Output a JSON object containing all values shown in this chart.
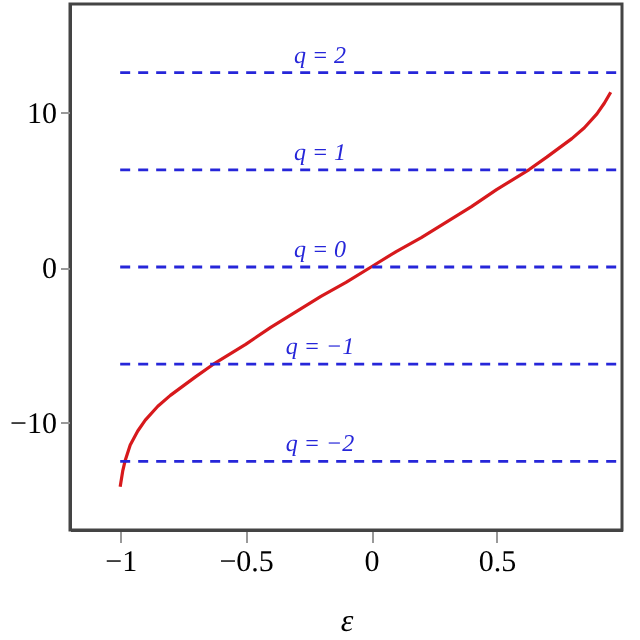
{
  "chart_data": {
    "type": "line",
    "xlabel": "ε",
    "series": [
      {
        "color": "#d7191c",
        "x": [
          -1,
          -0.99,
          -0.98,
          -0.96,
          -0.93,
          -0.9,
          -0.85,
          -0.8,
          -0.7,
          -0.63,
          -0.5,
          -0.4,
          -0.3,
          -0.2,
          -0.1,
          0,
          0.1,
          0.2,
          0.3,
          0.4,
          0.5,
          0.63,
          0.7,
          0.8,
          0.85,
          0.9,
          0.93,
          0.955
        ],
        "values": [
          -14.2,
          -13.2,
          -12.5,
          -11.5,
          -10.6,
          -9.9,
          -9.0,
          -8.3,
          -7.1,
          -6.3,
          -5.0,
          -3.9,
          -2.9,
          -1.9,
          -1.0,
          0,
          1.0,
          1.9,
          2.9,
          3.9,
          5.0,
          6.3,
          7.1,
          8.3,
          9.0,
          9.9,
          10.6,
          11.3
        ]
      }
    ],
    "xlim": [
      -1.2,
      1.0
    ],
    "ylim": [
      -17,
      17
    ],
    "xticks": [
      -1,
      -0.5,
      0,
      0.5
    ],
    "yticks": [
      -10,
      0,
      10
    ],
    "grid": false,
    "line_style": "solid",
    "marker": "none",
    "ref_lines": [
      {
        "axis": "y",
        "value": 12.57,
        "color": "#2626d9",
        "line_style": "dashed"
      },
      {
        "axis": "y",
        "value": 6.28,
        "color": "#2626d9",
        "line_style": "dashed"
      },
      {
        "axis": "y",
        "value": 0,
        "color": "#2626d9",
        "line_style": "dashed"
      },
      {
        "axis": "y",
        "value": -6.28,
        "color": "#2626d9",
        "line_style": "dashed"
      },
      {
        "axis": "y",
        "value": -12.57,
        "color": "#2626d9",
        "line_style": "dashed"
      }
    ],
    "annotations": [
      {
        "text": "q = 2",
        "y": 12.57
      },
      {
        "text": "q = 1",
        "y": 6.28
      },
      {
        "text": "q = 0",
        "y": 0
      },
      {
        "text": "q = −1",
        "y": -6.28
      },
      {
        "text": "q = −2",
        "y": -12.57
      }
    ]
  }
}
